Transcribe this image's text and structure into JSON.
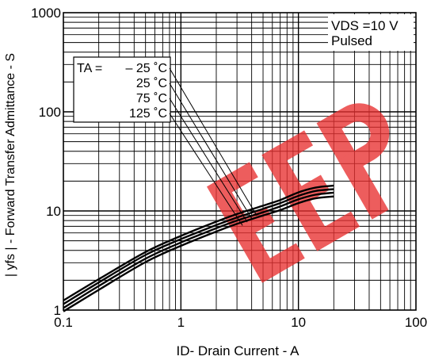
{
  "chart_data": {
    "type": "line",
    "title": "",
    "xlabel": "ID- Drain Current - A",
    "ylabel": "| yfs | - Forward Transfer Admittance - S",
    "xscale": "log",
    "yscale": "log",
    "xlim": [
      0.1,
      100
    ],
    "ylim": [
      1,
      1000
    ],
    "grid": true,
    "x_ticks": [
      "0.1",
      "1",
      "10",
      "100"
    ],
    "y_ticks": [
      "1",
      "10",
      "100",
      "1000"
    ],
    "condition_lines": [
      "VDS =10 V",
      "Pulsed"
    ],
    "legend_title": "TA =",
    "series": [
      {
        "name": "– 25 ˚C",
        "x": [
          0.1,
          0.2,
          0.5,
          1,
          2,
          3,
          5,
          7,
          10,
          14,
          20
        ],
        "y": [
          1.25,
          2.05,
          3.85,
          5.6,
          7.8,
          9.3,
          11.3,
          12.9,
          15.4,
          17.2,
          18.0
        ]
      },
      {
        "name": "25 ˚C",
        "x": [
          0.1,
          0.2,
          0.5,
          1,
          2,
          3,
          5,
          7,
          10,
          14,
          20
        ],
        "y": [
          1.15,
          1.9,
          3.6,
          5.2,
          7.2,
          8.6,
          10.5,
          12.0,
          14.2,
          15.9,
          16.6
        ]
      },
      {
        "name": "75 ˚C",
        "x": [
          0.1,
          0.2,
          0.5,
          1,
          2,
          3,
          5,
          7,
          10,
          14,
          20
        ],
        "y": [
          1.05,
          1.75,
          3.3,
          4.8,
          6.7,
          8.0,
          9.7,
          11.1,
          13.1,
          14.6,
          15.3
        ]
      },
      {
        "name": "125 ˚C",
        "x": [
          0.1,
          0.2,
          0.5,
          1,
          2,
          3,
          5,
          7,
          10,
          14,
          20
        ],
        "y": [
          0.97,
          1.6,
          3.05,
          4.45,
          6.2,
          7.4,
          9.0,
          10.2,
          12.0,
          13.4,
          14.0
        ]
      }
    ],
    "watermark_text": "EEP",
    "colors": {
      "line": "#000000",
      "watermark": "#e83030"
    }
  }
}
